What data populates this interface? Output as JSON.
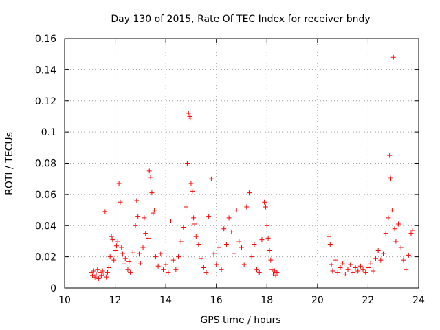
{
  "chart_data": {
    "type": "scatter",
    "title": "Day 130 of 2015, Rate Of TEC Index for receiver bndy",
    "xlabel": "GPS time / hours",
    "ylabel": "ROTI / TECUs",
    "xlim": [
      10,
      24
    ],
    "ylim": [
      0,
      0.16
    ],
    "x_ticks": [
      10,
      12,
      14,
      16,
      18,
      20,
      22,
      24
    ],
    "x_tick_labels": [
      "10",
      "12",
      "14",
      "16",
      "18",
      "20",
      "22",
      "24"
    ],
    "y_ticks": [
      0,
      0.02,
      0.04,
      0.06,
      0.08,
      0.1,
      0.12,
      0.14,
      0.16
    ],
    "y_tick_labels": [
      "0",
      "0.02",
      "0.04",
      "0.06",
      "0.08",
      "0.1",
      "0.12",
      "0.14",
      "0.16"
    ],
    "grid": true,
    "marker": "+",
    "color": "#ff0000",
    "series": [
      {
        "name": "ROTI",
        "points": [
          [
            11.05,
            0.01
          ],
          [
            11.1,
            0.008
          ],
          [
            11.15,
            0.011
          ],
          [
            11.2,
            0.007
          ],
          [
            11.25,
            0.009
          ],
          [
            11.3,
            0.012
          ],
          [
            11.35,
            0.006
          ],
          [
            11.4,
            0.01
          ],
          [
            11.45,
            0.008
          ],
          [
            11.5,
            0.011
          ],
          [
            11.55,
            0.009
          ],
          [
            11.6,
            0.049
          ],
          [
            11.65,
            0.007
          ],
          [
            11.7,
            0.01
          ],
          [
            11.75,
            0.013
          ],
          [
            11.8,
            0.02
          ],
          [
            11.85,
            0.033
          ],
          [
            11.9,
            0.031
          ],
          [
            11.95,
            0.018
          ],
          [
            12.0,
            0.024
          ],
          [
            12.05,
            0.027
          ],
          [
            12.1,
            0.03
          ],
          [
            12.15,
            0.067
          ],
          [
            12.2,
            0.055
          ],
          [
            12.25,
            0.026
          ],
          [
            12.3,
            0.022
          ],
          [
            12.35,
            0.016
          ],
          [
            12.4,
            0.019
          ],
          [
            12.5,
            0.012
          ],
          [
            12.55,
            0.017
          ],
          [
            12.6,
            0.01
          ],
          [
            12.7,
            0.023
          ],
          [
            12.8,
            0.04
          ],
          [
            12.85,
            0.056
          ],
          [
            12.9,
            0.046
          ],
          [
            12.95,
            0.022
          ],
          [
            13.0,
            0.016
          ],
          [
            13.1,
            0.026
          ],
          [
            13.15,
            0.045
          ],
          [
            13.2,
            0.035
          ],
          [
            13.3,
            0.032
          ],
          [
            13.35,
            0.075
          ],
          [
            13.4,
            0.071
          ],
          [
            13.45,
            0.061
          ],
          [
            13.5,
            0.048
          ],
          [
            13.55,
            0.05
          ],
          [
            13.6,
            0.02
          ],
          [
            13.7,
            0.014
          ],
          [
            13.8,
            0.022
          ],
          [
            13.9,
            0.012
          ],
          [
            14.0,
            0.015
          ],
          [
            14.1,
            0.01
          ],
          [
            14.2,
            0.043
          ],
          [
            14.3,
            0.018
          ],
          [
            14.4,
            0.012
          ],
          [
            14.5,
            0.02
          ],
          [
            14.6,
            0.03
          ],
          [
            14.7,
            0.039
          ],
          [
            14.8,
            0.052
          ],
          [
            14.85,
            0.08
          ],
          [
            14.9,
            0.112
          ],
          [
            14.95,
            0.11
          ],
          [
            14.97,
            0.109
          ],
          [
            15.0,
            0.067
          ],
          [
            15.05,
            0.062
          ],
          [
            15.1,
            0.045
          ],
          [
            15.15,
            0.041
          ],
          [
            15.2,
            0.033
          ],
          [
            15.3,
            0.028
          ],
          [
            15.4,
            0.019
          ],
          [
            15.5,
            0.013
          ],
          [
            15.6,
            0.01
          ],
          [
            15.7,
            0.046
          ],
          [
            15.8,
            0.07
          ],
          [
            15.9,
            0.022
          ],
          [
            16.0,
            0.015
          ],
          [
            16.1,
            0.026
          ],
          [
            16.2,
            0.012
          ],
          [
            16.3,
            0.038
          ],
          [
            16.4,
            0.028
          ],
          [
            16.5,
            0.045
          ],
          [
            16.6,
            0.036
          ],
          [
            16.7,
            0.022
          ],
          [
            16.8,
            0.05
          ],
          [
            16.9,
            0.03
          ],
          [
            17.0,
            0.026
          ],
          [
            17.1,
            0.015
          ],
          [
            17.2,
            0.052
          ],
          [
            17.3,
            0.061
          ],
          [
            17.4,
            0.02
          ],
          [
            17.5,
            0.028
          ],
          [
            17.6,
            0.012
          ],
          [
            17.7,
            0.01
          ],
          [
            17.8,
            0.031
          ],
          [
            17.9,
            0.055
          ],
          [
            17.95,
            0.052
          ],
          [
            18.0,
            0.04
          ],
          [
            18.05,
            0.032
          ],
          [
            18.1,
            0.024
          ],
          [
            18.15,
            0.018
          ],
          [
            18.2,
            0.012
          ],
          [
            18.25,
            0.009
          ],
          [
            18.3,
            0.011
          ],
          [
            18.35,
            0.008
          ],
          [
            18.4,
            0.01
          ],
          [
            20.45,
            0.033
          ],
          [
            20.5,
            0.028
          ],
          [
            20.55,
            0.015
          ],
          [
            20.6,
            0.011
          ],
          [
            20.7,
            0.018
          ],
          [
            20.8,
            0.01
          ],
          [
            20.9,
            0.013
          ],
          [
            21.0,
            0.016
          ],
          [
            21.1,
            0.009
          ],
          [
            21.2,
            0.012
          ],
          [
            21.3,
            0.015
          ],
          [
            21.4,
            0.01
          ],
          [
            21.5,
            0.013
          ],
          [
            21.6,
            0.011
          ],
          [
            21.7,
            0.014
          ],
          [
            21.8,
            0.012
          ],
          [
            21.9,
            0.01
          ],
          [
            22.0,
            0.013
          ],
          [
            22.1,
            0.016
          ],
          [
            22.2,
            0.011
          ],
          [
            22.3,
            0.019
          ],
          [
            22.4,
            0.024
          ],
          [
            22.5,
            0.018
          ],
          [
            22.6,
            0.022
          ],
          [
            22.7,
            0.035
          ],
          [
            22.8,
            0.045
          ],
          [
            22.85,
            0.085
          ],
          [
            22.88,
            0.071
          ],
          [
            22.9,
            0.07
          ],
          [
            22.95,
            0.05
          ],
          [
            23.0,
            0.148
          ],
          [
            23.05,
            0.038
          ],
          [
            23.1,
            0.03
          ],
          [
            23.2,
            0.041
          ],
          [
            23.3,
            0.026
          ],
          [
            23.4,
            0.018
          ],
          [
            23.5,
            0.012
          ],
          [
            23.6,
            0.021
          ],
          [
            23.7,
            0.035
          ],
          [
            23.75,
            0.037
          ]
        ]
      }
    ]
  }
}
